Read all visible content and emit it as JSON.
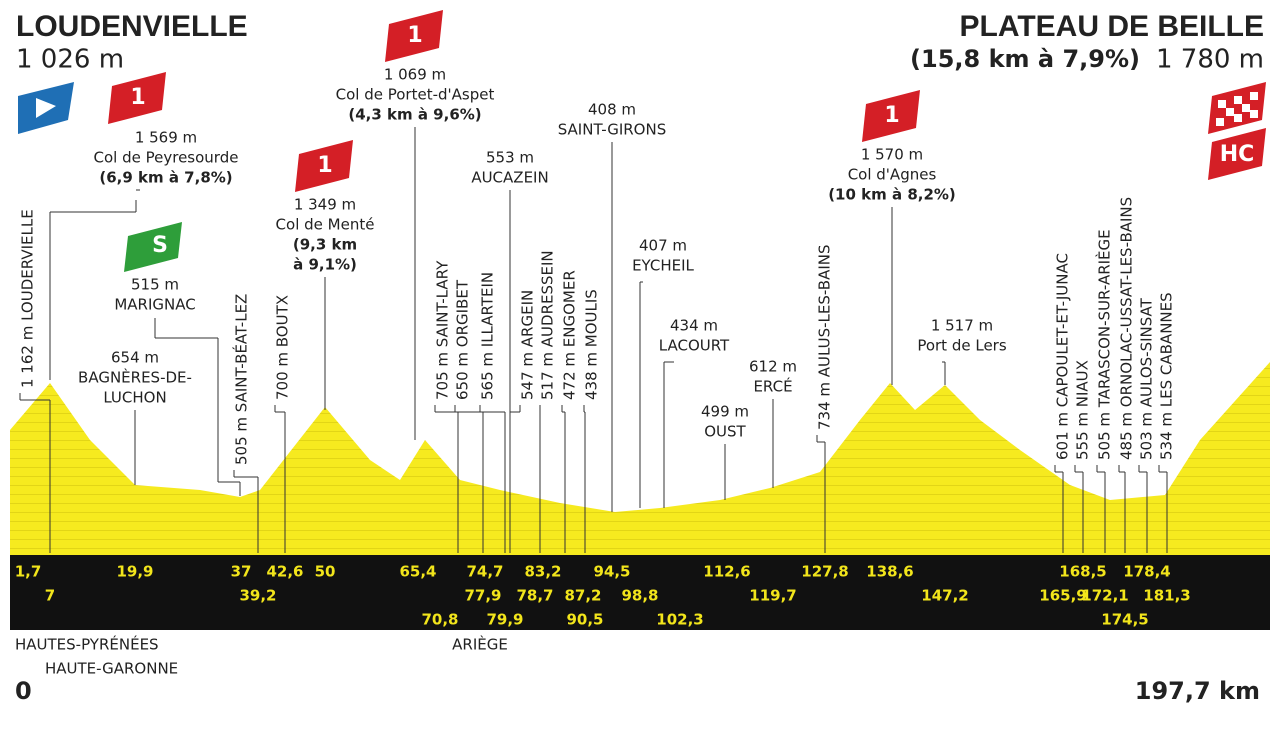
{
  "start": {
    "name": "LOUDENVIELLE",
    "altitude": "1 026 m"
  },
  "finish": {
    "name": "PLATEAU DE BEILLE",
    "climb": "(15,8 km à 7,9%)",
    "altitude": "1 780 m",
    "category": "HC"
  },
  "climbs": [
    {
      "category": "1",
      "altitude": "1 569 m",
      "name": "Col de Peyresourde",
      "detail_lines": [
        "(6,9 km à 7,8%)"
      ]
    },
    {
      "category": "1",
      "altitude": "1 349 m",
      "name": "Col de Menté",
      "detail_lines": [
        "(9,3 km",
        "à 9,1%)"
      ]
    },
    {
      "category": "1",
      "altitude": "1 069 m",
      "name": "Col de Portet-d'Aspet",
      "detail_lines": [
        "(4,3 km à 9,6%)"
      ]
    },
    {
      "category": "1",
      "altitude": "1 570 m",
      "name": "Col d'Agnes",
      "detail_lines": [
        "(10 km à 8,2%)"
      ]
    }
  ],
  "sprint": {
    "label": "S",
    "altitude": "515 m",
    "name": "MARIGNAC"
  },
  "places": [
    {
      "altitude": "654 m",
      "name_lines": [
        "BAGNÈRES-DE-",
        "LUCHON"
      ]
    },
    {
      "altitude": "553 m",
      "name_lines": [
        "AUCAZEIN"
      ]
    },
    {
      "altitude": "408 m",
      "name_lines": [
        "SAINT-GIRONS"
      ]
    },
    {
      "altitude": "407 m",
      "name_lines": [
        "EYCHEIL"
      ]
    },
    {
      "altitude": "434 m",
      "name_lines": [
        "LACOURT"
      ]
    },
    {
      "altitude": "499 m",
      "name_lines": [
        "OUST"
      ]
    },
    {
      "altitude": "612 m",
      "name_lines": [
        "ERCÉ"
      ]
    },
    {
      "altitude": "1 517 m",
      "name_lines": [
        "Port de Lers"
      ]
    }
  ],
  "vertical_places": [
    "1 162 m LOUDERVIELLE",
    "505 m SAINT-BÉAT-LEZ",
    "700 m BOUTX",
    "705 m SAINT-LARY",
    "650 m ORGIBET",
    "565 m ILLARTEIN",
    "547 m ARGEIN",
    "517 m AUDRESSEIN",
    "472 m ENGOMER",
    "438 m MOULIS",
    "734 m AULUS-LES-BAINS",
    "601 m CAPOULET-ET-JUNAC",
    "555 m NIAUX",
    "505 m TARASCON-SUR-ARIÈGE",
    "485 m ORNOLAC-USSAT-LES-BAINS",
    "503 m AULOS-SINSAT",
    "534 m LES CABANNES"
  ],
  "km_marks": [
    "1,7",
    "7",
    "19,9",
    "37",
    "39,2",
    "42,6",
    "50",
    "65,4",
    "70,8",
    "74,7",
    "77,9",
    "79,9",
    "78,7",
    "83,2",
    "87,2",
    "90,5",
    "94,5",
    "98,8",
    "102,3",
    "112,6",
    "119,7",
    "127,8",
    "138,6",
    "147,2",
    "165,9",
    "168,5",
    "172,1",
    "174,5",
    "178,4",
    "181,3"
  ],
  "regions": [
    "HAUTES-PYRÉNÉES",
    "HAUTE-GARONNE",
    "ARIÈGE"
  ],
  "distance": {
    "start": "0",
    "end": "197,7 km"
  }
}
